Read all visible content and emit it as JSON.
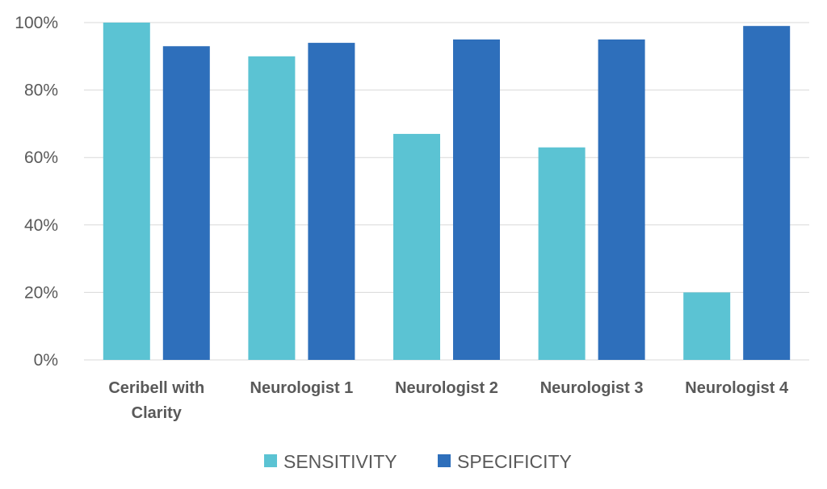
{
  "chart_data": {
    "type": "bar",
    "categories": [
      [
        "Ceribell with",
        "Clarity"
      ],
      [
        "Neurologist 1"
      ],
      [
        "Neurologist 2"
      ],
      [
        "Neurologist 3"
      ],
      [
        "Neurologist 4"
      ]
    ],
    "series": [
      {
        "name": "SENSITIVITY",
        "color": "#5bc3d3",
        "values": [
          100,
          90,
          67,
          63,
          20
        ]
      },
      {
        "name": "SPECIFICITY",
        "color": "#2e6fbb",
        "values": [
          93,
          94,
          95,
          95,
          99
        ]
      }
    ],
    "ylim": [
      0,
      100
    ],
    "yticks": [
      "0%",
      "20%",
      "40%",
      "60%",
      "80%",
      "100%"
    ],
    "ytick_values": [
      0,
      20,
      40,
      60,
      80,
      100
    ],
    "grid": true,
    "legend_position": "bottom",
    "title": "",
    "xlabel": "",
    "ylabel": ""
  }
}
